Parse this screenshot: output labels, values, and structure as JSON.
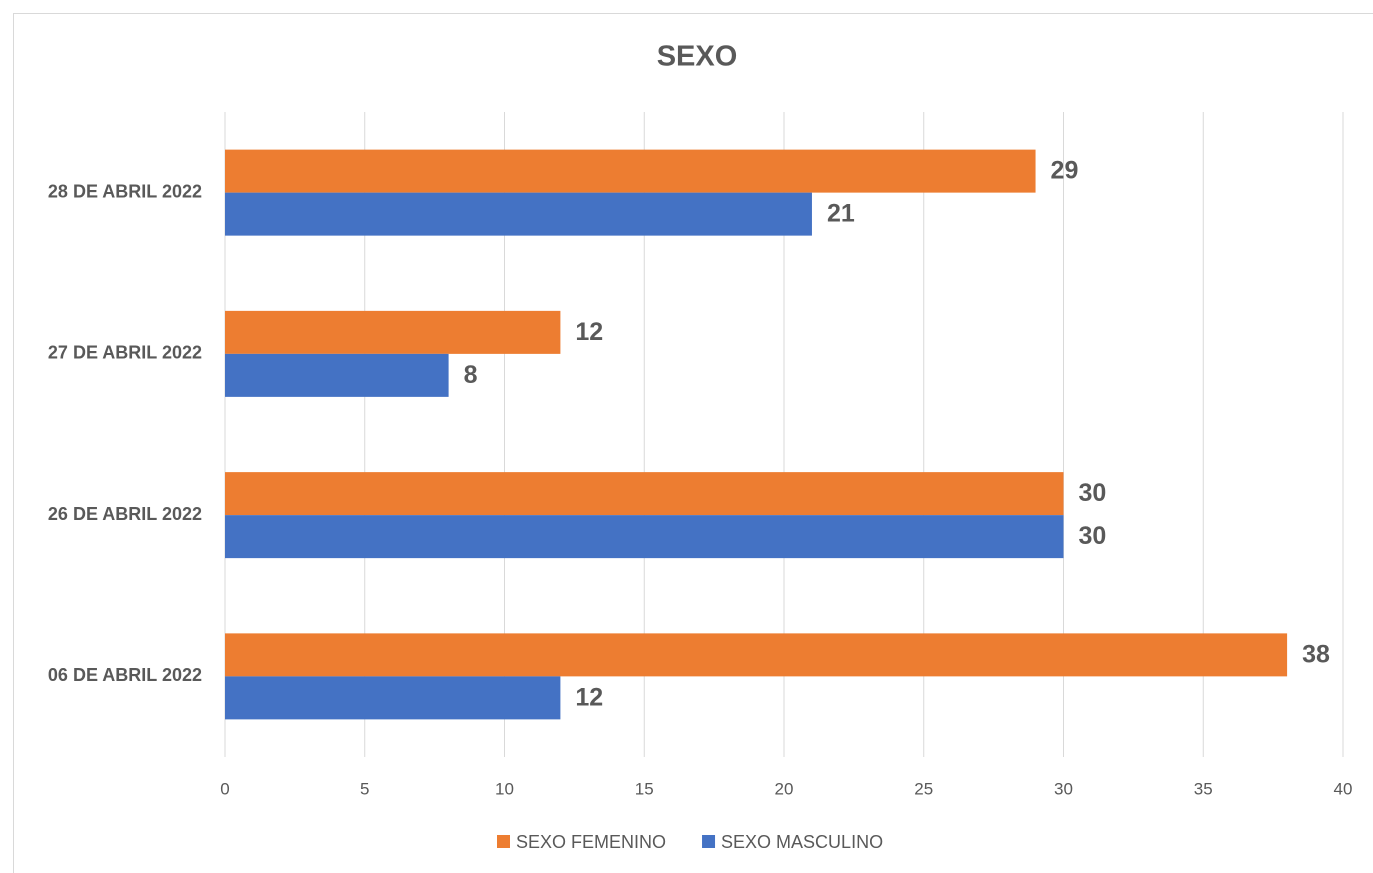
{
  "chart_data": {
    "type": "bar",
    "orientation": "horizontal",
    "title": "SEXO",
    "categories": [
      "06 DE ABRIL 2022",
      "26 DE ABRIL 2022",
      "27 DE ABRIL 2022",
      "28 DE ABRIL 2022"
    ],
    "series": [
      {
        "name": "SEXO FEMENINO",
        "color": "#ed7d31",
        "values": [
          38,
          30,
          12,
          29
        ]
      },
      {
        "name": "SEXO MASCULINO",
        "color": "#4472c4",
        "values": [
          12,
          30,
          8,
          21
        ]
      }
    ],
    "xlim": [
      0,
      40
    ],
    "xticks": [
      0,
      5,
      10,
      15,
      20,
      25,
      30,
      35,
      40
    ],
    "grid": true,
    "legend": "bottom"
  }
}
